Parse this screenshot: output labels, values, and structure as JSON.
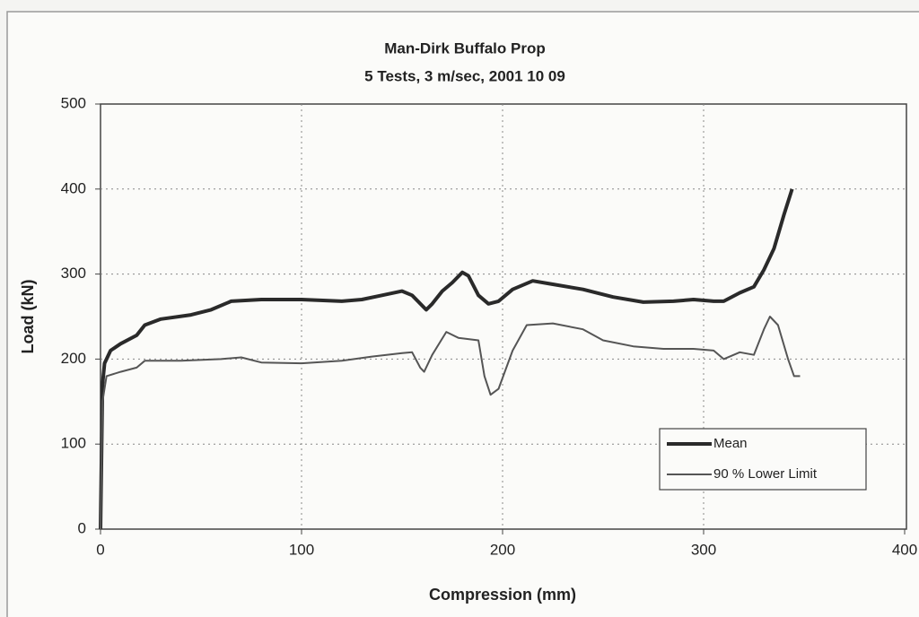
{
  "chart_data": {
    "type": "line",
    "title": "Man-Dirk Buffalo Prop",
    "subtitle": "5 Tests, 3 m/sec, 2001 10 09",
    "x_label": "Compression (mm)",
    "y_label": "Load (kN)",
    "xlim": [
      0,
      400
    ],
    "xticks": [
      0,
      100,
      200,
      300,
      400
    ],
    "ylim": [
      0,
      500
    ],
    "yticks": [
      0,
      100,
      200,
      300,
      400,
      500
    ],
    "grid": true,
    "legend": "lower right",
    "series": [
      {
        "name": "Mean",
        "color": "#2a2a2a",
        "x": [
          0,
          1,
          2,
          5,
          10,
          18,
          22,
          30,
          45,
          55,
          65,
          80,
          100,
          120,
          130,
          140,
          150,
          155,
          162,
          165,
          170,
          175,
          180,
          183,
          188,
          193,
          198,
          205,
          215,
          225,
          240,
          255,
          270,
          285,
          295,
          305,
          310,
          318,
          325,
          330,
          335,
          340,
          344
        ],
        "values": [
          0,
          170,
          195,
          210,
          218,
          228,
          240,
          247,
          252,
          258,
          268,
          270,
          270,
          268,
          270,
          275,
          280,
          275,
          258,
          265,
          280,
          290,
          302,
          298,
          275,
          265,
          268,
          282,
          292,
          288,
          282,
          273,
          267,
          268,
          270,
          268,
          268,
          278,
          285,
          305,
          330,
          370,
          400
        ]
      },
      {
        "name": "90 % Lower Limit",
        "color": "#555555",
        "x": [
          0,
          1,
          3,
          10,
          18,
          22,
          40,
          60,
          70,
          80,
          100,
          120,
          135,
          150,
          155,
          159,
          161,
          165,
          172,
          178,
          188,
          191,
          194,
          198,
          205,
          212,
          225,
          240,
          250,
          265,
          280,
          295,
          305,
          310,
          318,
          325,
          330,
          333,
          337,
          342,
          345,
          348
        ],
        "values": [
          0,
          150,
          180,
          185,
          190,
          198,
          198,
          200,
          202,
          196,
          195,
          198,
          203,
          207,
          208,
          190,
          185,
          205,
          232,
          225,
          222,
          180,
          158,
          165,
          210,
          240,
          242,
          235,
          222,
          215,
          212,
          212,
          210,
          200,
          208,
          205,
          235,
          250,
          240,
          200,
          180,
          180
        ]
      }
    ]
  }
}
